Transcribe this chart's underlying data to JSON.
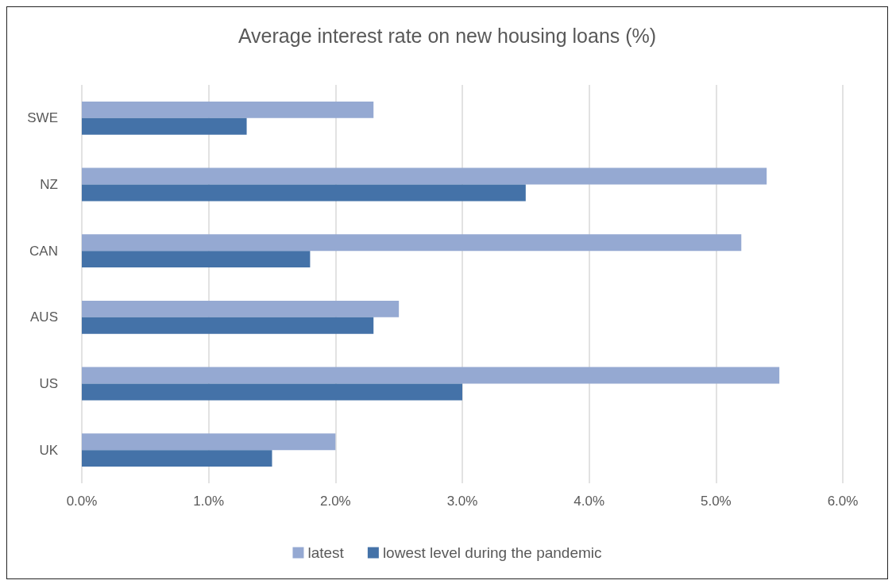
{
  "chart_data": {
    "type": "bar",
    "orientation": "horizontal",
    "title": "Average interest rate on new housing loans (%)",
    "categories": [
      "SWE",
      "NZ",
      "CAN",
      "AUS",
      "US",
      "UK"
    ],
    "series": [
      {
        "name": "latest",
        "color": "#95a9d2",
        "values": [
          2.3,
          5.4,
          5.2,
          2.5,
          5.5,
          2.0
        ]
      },
      {
        "name": "lowest level during the pandemic",
        "color": "#4472a8",
        "values": [
          1.3,
          3.5,
          1.8,
          2.3,
          3.0,
          1.5
        ]
      }
    ],
    "xlim": [
      0,
      6
    ],
    "xticks": [
      {
        "value": 0,
        "label": "0.0%"
      },
      {
        "value": 1,
        "label": "1.0%"
      },
      {
        "value": 2,
        "label": "2.0%"
      },
      {
        "value": 3,
        "label": "3.0%"
      },
      {
        "value": 4,
        "label": "4.0%"
      },
      {
        "value": 5,
        "label": "5.0%"
      },
      {
        "value": 6,
        "label": "6.0%"
      }
    ],
    "grid": "x",
    "legend": "bottom"
  }
}
